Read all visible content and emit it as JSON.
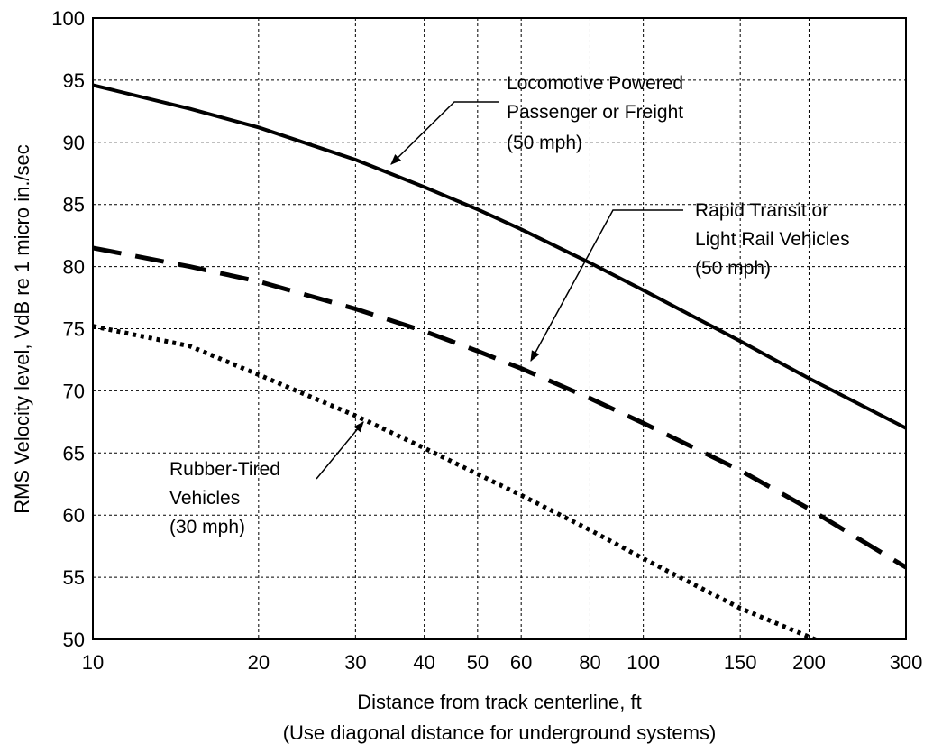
{
  "chart_data": {
    "type": "line",
    "title": "",
    "xlabel": "Distance from track centerline, ft",
    "xlabel_note": "(Use diagonal distance for underground systems)",
    "ylabel": "RMS Velocity level, VdB re 1 micro in./sec",
    "xscale": "log",
    "xlim": [
      10,
      300
    ],
    "ylim": [
      50,
      100
    ],
    "grid": true,
    "x_ticks": [
      10,
      20,
      30,
      40,
      50,
      60,
      80,
      100,
      150,
      200,
      300
    ],
    "x_tick_labels": [
      "10",
      "20",
      "30",
      "40",
      "50",
      "60",
      "80",
      "100",
      "150",
      "200",
      "300"
    ],
    "y_ticks": [
      50,
      55,
      60,
      65,
      70,
      75,
      80,
      85,
      90,
      95,
      100
    ],
    "y_tick_labels": [
      "50",
      "55",
      "60",
      "65",
      "70",
      "75",
      "80",
      "85",
      "90",
      "95",
      "100"
    ],
    "series": [
      {
        "line_style": "solid",
        "x": [
          10,
          15,
          20,
          30,
          40,
          50,
          60,
          80,
          100,
          150,
          200,
          300
        ],
        "y": [
          94.6,
          92.7,
          91.2,
          88.6,
          86.4,
          84.6,
          83.0,
          80.3,
          78.1,
          74.0,
          71.0,
          67.0
        ]
      },
      {
        "line_style": "dashed",
        "x": [
          10,
          15,
          20,
          30,
          40,
          50,
          60,
          80,
          100,
          150,
          200,
          300
        ],
        "y": [
          81.5,
          80.0,
          78.8,
          76.6,
          74.8,
          73.2,
          71.8,
          69.4,
          67.4,
          63.6,
          60.5,
          55.8
        ]
      },
      {
        "line_style": "dotted",
        "x": [
          10,
          15,
          20,
          30,
          40,
          50,
          60,
          80,
          100,
          150,
          200,
          210
        ],
        "y": [
          75.2,
          73.6,
          71.3,
          68.0,
          65.4,
          63.3,
          61.6,
          58.8,
          56.5,
          52.5,
          50.2,
          49.8
        ]
      }
    ],
    "annotations": [
      {
        "lines": [
          "Locomotive Powered",
          "Passenger or Freight",
          "(50 mph)"
        ]
      },
      {
        "lines": [
          "Rapid Transit or",
          "Light Rail Vehicles",
          "(50 mph)"
        ]
      },
      {
        "lines": [
          "Rubber-Tired",
          "Vehicles",
          "(30 mph)"
        ]
      }
    ]
  }
}
